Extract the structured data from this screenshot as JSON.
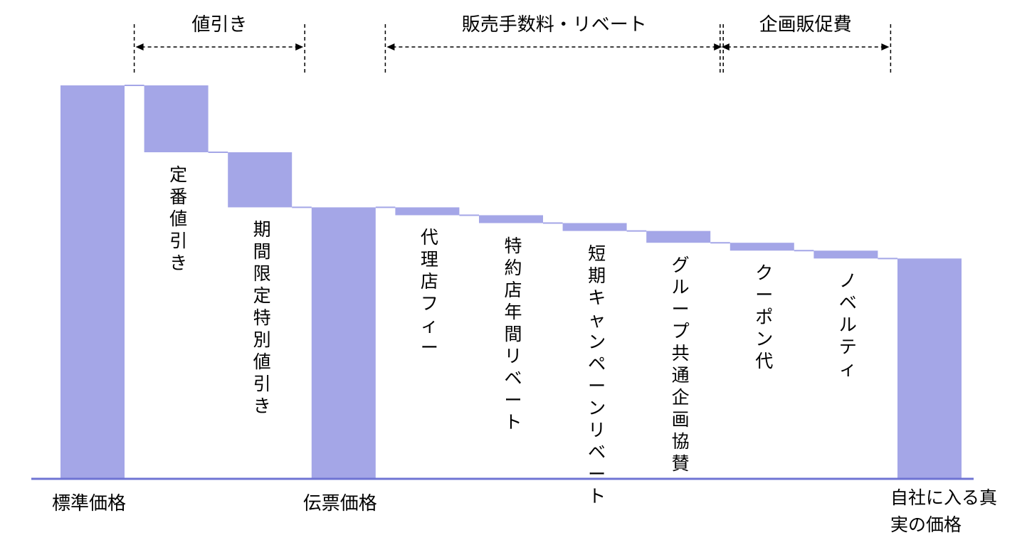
{
  "chart_data": {
    "type": "waterfall",
    "title": "",
    "xlabel": "",
    "ylabel": "",
    "y_axis_ticks": "none",
    "grid": false,
    "colors": {
      "bar": "#a4a6e7",
      "axis": "#6f74d3",
      "connector": "#a4a6e7",
      "arrow": "#000000"
    },
    "steps": [
      {
        "id": "std",
        "label": "標準価格",
        "kind": "total",
        "value": 100
      },
      {
        "id": "d1",
        "label": "定番値引き",
        "kind": "decrease",
        "value": 17
      },
      {
        "id": "d2",
        "label": "期間限定特別値引き",
        "kind": "decrease",
        "value": 14
      },
      {
        "id": "inv",
        "label": "伝票価格",
        "kind": "total",
        "value": 69
      },
      {
        "id": "r1",
        "label": "代理店フィー",
        "kind": "decrease",
        "value": 2
      },
      {
        "id": "r2",
        "label": "特約店年間リベート",
        "kind": "decrease",
        "value": 2
      },
      {
        "id": "r3",
        "label": "短期キャンペーンリベート",
        "kind": "decrease",
        "value": 2
      },
      {
        "id": "r4",
        "label": "グループ共通企画協賛",
        "kind": "decrease",
        "value": 3
      },
      {
        "id": "p1",
        "label": "クーポン代",
        "kind": "decrease",
        "value": 2
      },
      {
        "id": "p2",
        "label": "ノベルティ",
        "kind": "decrease",
        "value": 2
      },
      {
        "id": "net",
        "label": "自社に入る真実の価格",
        "kind": "total",
        "value": 56
      }
    ],
    "groups": [
      {
        "label": "値引き",
        "from": "d1",
        "to": "d2"
      },
      {
        "label": "販売手数料・リベート",
        "from": "r1",
        "to": "r4"
      },
      {
        "label": "企画販促費",
        "from": "p1",
        "to": "p2"
      }
    ],
    "annotations": "Dashed vertical markers with double-headed arrows span each group"
  }
}
